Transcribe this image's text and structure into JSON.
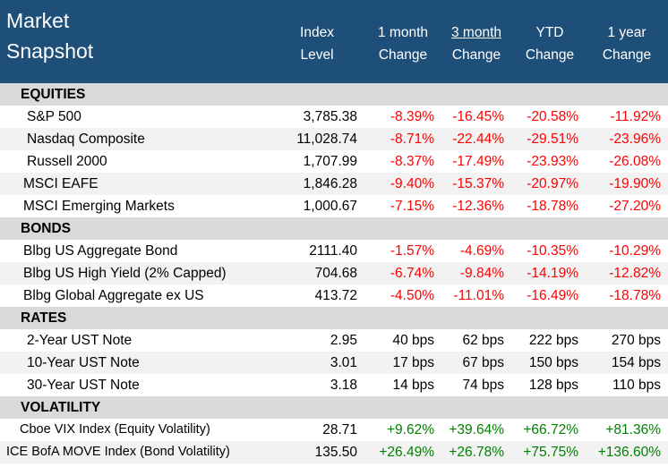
{
  "header": {
    "title_line1": "Market",
    "title_line2": "Snapshot",
    "columns": [
      {
        "line1": "Index",
        "line2": "Level"
      },
      {
        "line1": "1 month",
        "line2": "Change"
      },
      {
        "line1": "3 month",
        "line2": "Change"
      },
      {
        "line1": "YTD",
        "line2": "Change"
      },
      {
        "line1": "1 year",
        "line2": "Change"
      }
    ]
  },
  "sections": {
    "equities": "EQUITIES",
    "bonds": "BONDS",
    "rates": "RATES",
    "volatility": "VOLATILITY"
  },
  "rows": {
    "sp500": {
      "name": "S&P 500",
      "level": "3,785.38",
      "m1": "-8.39%",
      "m3": "-16.45%",
      "ytd": "-20.58%",
      "y1": "-11.92%"
    },
    "nasdaq": {
      "name": "Nasdaq Composite",
      "level": "11,028.74",
      "m1": "-8.71%",
      "m3": "-22.44%",
      "ytd": "-29.51%",
      "y1": "-23.96%"
    },
    "russell": {
      "name": "Russell 2000",
      "level": "1,707.99",
      "m1": "-8.37%",
      "m3": "-17.49%",
      "ytd": "-23.93%",
      "y1": "-26.08%"
    },
    "eafe": {
      "name": "MSCI EAFE",
      "level": "1,846.28",
      "m1": "-9.40%",
      "m3": "-15.37%",
      "ytd": "-20.97%",
      "y1": "-19.90%"
    },
    "em": {
      "name": "MSCI Emerging Markets",
      "level": "1,000.67",
      "m1": "-7.15%",
      "m3": "-12.36%",
      "ytd": "-18.78%",
      "y1": "-27.20%"
    },
    "agg": {
      "name": "Blbg US Aggregate Bond",
      "level": "2111.40",
      "m1": "-1.57%",
      "m3": "-4.69%",
      "ytd": "-10.35%",
      "y1": "-10.29%"
    },
    "hy": {
      "name": "Blbg US High Yield (2% Capped)",
      "level": "704.68",
      "m1": "-6.74%",
      "m3": "-9.84%",
      "ytd": "-14.19%",
      "y1": "-12.82%"
    },
    "global": {
      "name": "Blbg Global Aggregate ex US",
      "level": "413.72",
      "m1": "-4.50%",
      "m3": "-11.01%",
      "ytd": "-16.49%",
      "y1": "-18.78%"
    },
    "ust2": {
      "name": "2-Year UST Note",
      "level": "2.95",
      "m1": "40 bps",
      "m3": "62 bps",
      "ytd": "222 bps",
      "y1": "270 bps"
    },
    "ust10": {
      "name": "10-Year UST Note",
      "level": "3.01",
      "m1": "17 bps",
      "m3": "67 bps",
      "ytd": "150 bps",
      "y1": "154 bps"
    },
    "ust30": {
      "name": "30-Year UST Note",
      "level": "3.18",
      "m1": "14 bps",
      "m3": "74 bps",
      "ytd": "128 bps",
      "y1": "110 bps"
    },
    "vix": {
      "name": "Cboe VIX Index (Equity Volatility)",
      "level": "28.71",
      "m1": "+9.62%",
      "m3": "+39.64%",
      "ytd": "+66.72%",
      "y1": "+81.36%"
    },
    "move": {
      "name": "ICE BofA MOVE Index (Bond Volatility)",
      "level": "135.50",
      "m1": "+26.49%",
      "m3": "+26.78%",
      "ytd": "+75.75%",
      "y1": "+136.60%"
    }
  },
  "colors": {
    "header_bg": "#1e4f78",
    "section_bg": "#d9d9d9",
    "alt_row_bg": "#f2f2f2",
    "negative": "#ff0000",
    "positive": "#008000"
  }
}
